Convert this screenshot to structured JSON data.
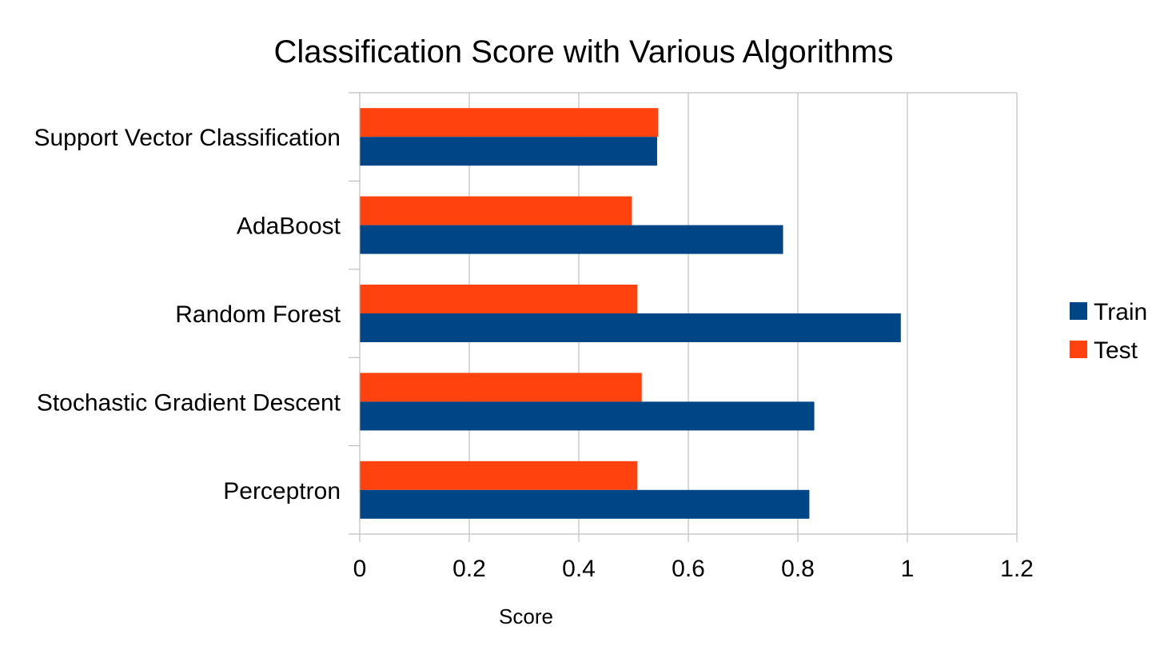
{
  "chart_data": {
    "type": "bar",
    "orientation": "horizontal",
    "title": "Classification Score with Various Algorithms",
    "xlabel": "Score",
    "ylabel": "",
    "categories": [
      "Support Vector Classification",
      "AdaBoost",
      "Random Forest",
      "Stochastic Gradient Descent",
      "Perceptron"
    ],
    "series": [
      {
        "name": "Train",
        "color": "#004586",
        "values": [
          0.543,
          0.773,
          0.988,
          0.83,
          0.821
        ]
      },
      {
        "name": "Test",
        "color": "#ff420e",
        "values": [
          0.545,
          0.497,
          0.507,
          0.515,
          0.507
        ]
      }
    ],
    "xlim": [
      0,
      1.2
    ],
    "xticks": [
      "0",
      "0.2",
      "0.4",
      "0.6",
      "0.8",
      "1",
      "1.2"
    ],
    "grid": true,
    "legend_position": "right"
  }
}
